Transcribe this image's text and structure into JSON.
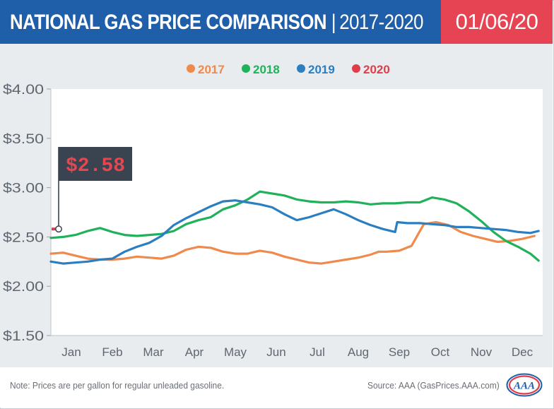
{
  "header": {
    "title_main": "NATIONAL GAS PRICE COMPARISON",
    "title_sep": "|",
    "title_range": "2017-2020",
    "date": "01/06/20"
  },
  "colors": {
    "header_bg": "#1f5ea9",
    "date_bg": "#e64452",
    "plot_bg": "#e9ecef",
    "s2017": "#ef8a4c",
    "s2018": "#1fb25a",
    "s2019": "#2b7fc1",
    "s2020": "#e03d4b",
    "flag_bg": "#3a4450",
    "flag_text": "#e8464f"
  },
  "callout": {
    "value": "$2.58",
    "icon": "price-flag-icon"
  },
  "footer": {
    "note": "Note: Prices are per gallon for regular unleaded gasoline.",
    "source": "Source: AAA (GasPrices.AAA.com)",
    "logo_text": "AAA",
    "logo_icon": "aaa-logo-icon"
  },
  "chart_data": {
    "type": "line",
    "title": "NATIONAL GAS PRICE COMPARISON | 2017-2020",
    "xlabel": "",
    "ylabel": "",
    "categories": [
      "Jan",
      "Feb",
      "Mar",
      "Apr",
      "May",
      "Jun",
      "Jul",
      "Aug",
      "Sep",
      "Oct",
      "Nov",
      "Dec"
    ],
    "ylim": [
      1.5,
      4.0
    ],
    "yticks": [
      1.5,
      2.0,
      2.5,
      3.0,
      3.5,
      4.0
    ],
    "ytick_labels": [
      "$1.50",
      "$2.00",
      "$2.50",
      "$3.00",
      "$3.50",
      "$4.00"
    ],
    "legend": [
      "2017",
      "2018",
      "2019",
      "2020"
    ],
    "legend_position": "top-center",
    "grid": false,
    "x_unit": "month (0 = start of Jan, 12 = end of Dec)",
    "series": [
      {
        "name": "2017",
        "color": "#ef8a4c",
        "x": [
          0,
          0.3,
          0.6,
          0.9,
          1.2,
          1.5,
          1.8,
          2.1,
          2.4,
          2.7,
          3.0,
          3.3,
          3.6,
          3.9,
          4.2,
          4.5,
          4.8,
          5.1,
          5.4,
          5.7,
          6.0,
          6.3,
          6.6,
          6.9,
          7.2,
          7.5,
          7.8,
          8.0,
          8.2,
          8.5,
          8.8,
          9.1,
          9.4,
          9.7,
          10.0,
          10.3,
          10.6,
          10.9,
          11.2,
          11.5,
          11.8
        ],
        "values": [
          2.33,
          2.34,
          2.31,
          2.28,
          2.27,
          2.27,
          2.28,
          2.3,
          2.29,
          2.28,
          2.31,
          2.37,
          2.4,
          2.39,
          2.35,
          2.33,
          2.33,
          2.36,
          2.34,
          2.3,
          2.27,
          2.24,
          2.23,
          2.25,
          2.27,
          2.29,
          2.32,
          2.35,
          2.35,
          2.36,
          2.41,
          2.63,
          2.65,
          2.62,
          2.55,
          2.51,
          2.48,
          2.45,
          2.46,
          2.48,
          2.51
        ]
      },
      {
        "name": "2018",
        "color": "#1fb25a",
        "x": [
          0,
          0.3,
          0.6,
          0.9,
          1.2,
          1.5,
          1.8,
          2.1,
          2.4,
          2.7,
          3.0,
          3.3,
          3.6,
          3.9,
          4.2,
          4.5,
          4.8,
          5.1,
          5.4,
          5.7,
          6.0,
          6.3,
          6.6,
          6.9,
          7.2,
          7.5,
          7.8,
          8.1,
          8.4,
          8.7,
          9.0,
          9.3,
          9.6,
          9.9,
          10.2,
          10.5,
          10.8,
          11.1,
          11.4,
          11.7,
          11.9
        ],
        "values": [
          2.49,
          2.5,
          2.52,
          2.56,
          2.59,
          2.55,
          2.52,
          2.51,
          2.52,
          2.53,
          2.56,
          2.63,
          2.67,
          2.7,
          2.78,
          2.82,
          2.88,
          2.96,
          2.94,
          2.92,
          2.88,
          2.86,
          2.85,
          2.85,
          2.86,
          2.85,
          2.83,
          2.84,
          2.84,
          2.85,
          2.85,
          2.9,
          2.88,
          2.84,
          2.76,
          2.66,
          2.55,
          2.46,
          2.4,
          2.33,
          2.26
        ]
      },
      {
        "name": "2019",
        "color": "#2b7fc1",
        "x": [
          0,
          0.3,
          0.6,
          0.9,
          1.2,
          1.5,
          1.8,
          2.1,
          2.4,
          2.7,
          3.0,
          3.3,
          3.6,
          3.9,
          4.2,
          4.5,
          4.8,
          5.1,
          5.4,
          5.7,
          6.0,
          6.3,
          6.6,
          6.9,
          7.2,
          7.5,
          7.8,
          8.1,
          8.4,
          8.45,
          8.7,
          9.0,
          9.3,
          9.6,
          9.9,
          10.2,
          10.5,
          10.8,
          11.1,
          11.4,
          11.7,
          11.9
        ],
        "values": [
          2.25,
          2.23,
          2.24,
          2.25,
          2.27,
          2.28,
          2.35,
          2.4,
          2.44,
          2.51,
          2.62,
          2.69,
          2.75,
          2.81,
          2.86,
          2.87,
          2.85,
          2.83,
          2.8,
          2.73,
          2.67,
          2.7,
          2.74,
          2.78,
          2.73,
          2.67,
          2.62,
          2.58,
          2.55,
          2.65,
          2.64,
          2.64,
          2.63,
          2.62,
          2.6,
          2.6,
          2.59,
          2.58,
          2.57,
          2.55,
          2.54,
          2.56
        ]
      },
      {
        "name": "2020",
        "color": "#e03d4b",
        "x": [
          0,
          0.12
        ],
        "values": [
          2.58,
          2.58
        ]
      }
    ]
  }
}
